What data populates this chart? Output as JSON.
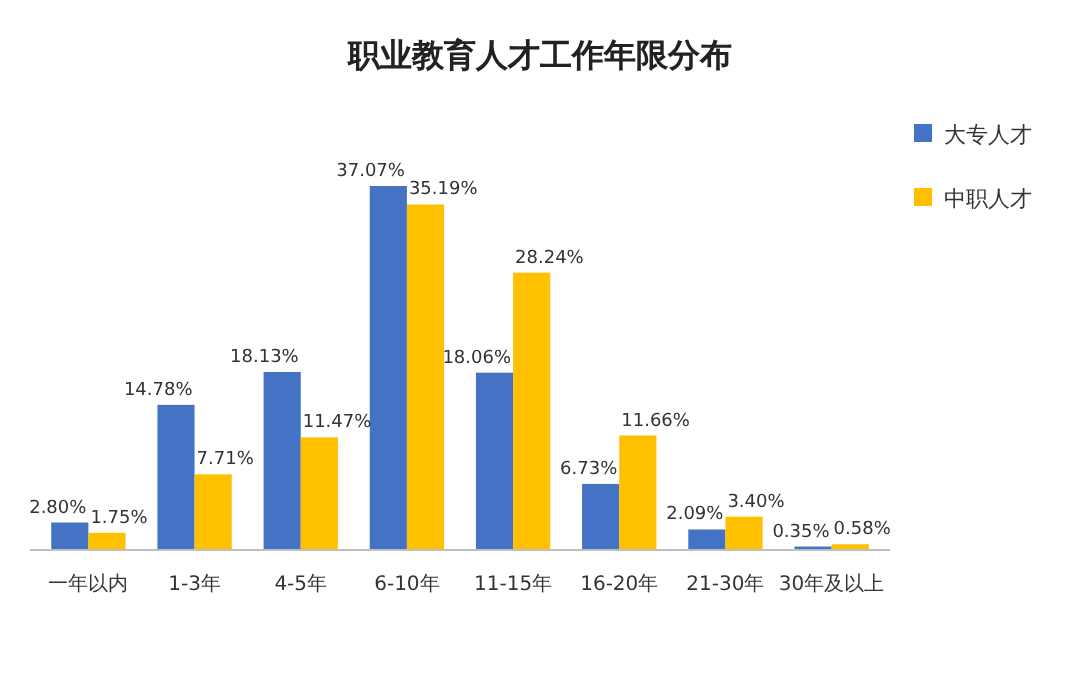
{
  "chart_data": {
    "type": "bar",
    "title": "职业教育人才工作年限分布",
    "categories": [
      "一年以内",
      "1-3年",
      "4-5年",
      "6-10年",
      "11-15年",
      "16-20年",
      "21-30年",
      "30年及以上"
    ],
    "series": [
      {
        "name": "大专人才",
        "color": "#4472c4",
        "values": [
          2.8,
          14.78,
          18.13,
          37.07,
          18.06,
          6.73,
          2.09,
          0.35
        ],
        "value_labels": [
          "2.80%",
          "14.78%",
          "18.13%",
          "37.07%",
          "18.06%",
          "6.73%",
          "2.09%",
          "0.35%"
        ]
      },
      {
        "name": "中职人才",
        "color": "#ffc000",
        "values": [
          1.75,
          7.71,
          11.47,
          35.19,
          28.24,
          11.66,
          3.4,
          0.58
        ],
        "value_labels": [
          "1.75%",
          "7.71%",
          "11.47%",
          "35.19%",
          "28.24%",
          "11.66%",
          "3.40%",
          "0.58%"
        ]
      }
    ],
    "legend": "top right",
    "grid": false
  }
}
